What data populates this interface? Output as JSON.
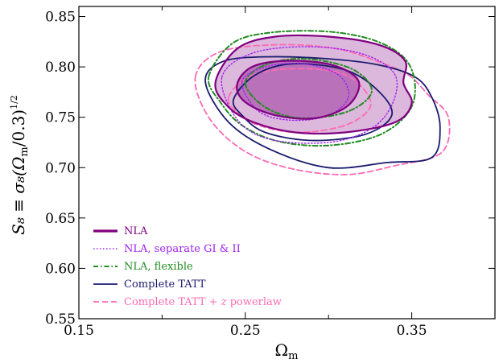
{
  "chart_data": {
    "type": "contour",
    "xlabel": "Ω",
    "xlabel_sub": "m",
    "ylabel": "S₈ ≡ σ₈(Ω",
    "ylabel_sub": "m",
    "ylabel_tail": "/0.3)",
    "ylabel_exp": "1/2",
    "xlim": [
      0.15,
      0.4
    ],
    "ylim": [
      0.55,
      0.86
    ],
    "xticks": [
      0.15,
      0.25,
      0.35
    ],
    "xtick_labels": [
      "0.15",
      "0.25",
      "0.35"
    ],
    "yticks": [
      0.55,
      0.6,
      0.65,
      0.7,
      0.75,
      0.8,
      0.85
    ],
    "ytick_labels": [
      "0.55",
      "0.60",
      "0.65",
      "0.70",
      "0.75",
      "0.80",
      "0.85"
    ],
    "legend_position": "lower-left",
    "series": [
      {
        "name": "NLA",
        "color": "#800080",
        "style": "solid-thick",
        "fill": true,
        "contours": [
          [
            [
              0.232,
              0.784
            ],
            [
              0.245,
              0.818
            ],
            [
              0.268,
              0.83
            ],
            [
              0.3,
              0.83
            ],
            [
              0.33,
              0.822
            ],
            [
              0.346,
              0.806
            ],
            [
              0.345,
              0.784
            ],
            [
              0.35,
              0.764
            ],
            [
              0.34,
              0.745
            ],
            [
              0.31,
              0.735
            ],
            [
              0.28,
              0.735
            ],
            [
              0.255,
              0.745
            ],
            [
              0.24,
              0.76
            ]
          ],
          [
            [
              0.245,
              0.782
            ],
            [
              0.254,
              0.8
            ],
            [
              0.275,
              0.806
            ],
            [
              0.302,
              0.802
            ],
            [
              0.318,
              0.786
            ],
            [
              0.312,
              0.762
            ],
            [
              0.292,
              0.749
            ],
            [
              0.268,
              0.752
            ],
            [
              0.25,
              0.765
            ]
          ]
        ]
      },
      {
        "name": "NLA, separate GI & II",
        "color": "#a020f0",
        "style": "dotted",
        "fill": false,
        "contours": [
          [
            [
              0.236,
              0.79
            ],
            [
              0.255,
              0.814
            ],
            [
              0.29,
              0.82
            ],
            [
              0.322,
              0.812
            ],
            [
              0.34,
              0.792
            ],
            [
              0.338,
              0.762
            ],
            [
              0.325,
              0.738
            ],
            [
              0.3,
              0.725
            ],
            [
              0.265,
              0.728
            ],
            [
              0.245,
              0.748
            ]
          ],
          [
            [
              0.248,
              0.785
            ],
            [
              0.262,
              0.8
            ],
            [
              0.285,
              0.803
            ],
            [
              0.306,
              0.792
            ],
            [
              0.312,
              0.77
            ],
            [
              0.3,
              0.752
            ],
            [
              0.278,
              0.747
            ],
            [
              0.258,
              0.756
            ]
          ]
        ]
      },
      {
        "name": "NLA, flexible",
        "color": "#228b22",
        "style": "dash-dot",
        "fill": false,
        "contours": [
          [
            [
              0.228,
              0.79
            ],
            [
              0.242,
              0.823
            ],
            [
              0.265,
              0.834
            ],
            [
              0.3,
              0.835
            ],
            [
              0.328,
              0.826
            ],
            [
              0.346,
              0.808
            ],
            [
              0.352,
              0.782
            ],
            [
              0.348,
              0.755
            ],
            [
              0.33,
              0.732
            ],
            [
              0.3,
              0.722
            ],
            [
              0.27,
              0.726
            ],
            [
              0.248,
              0.742
            ],
            [
              0.235,
              0.765
            ]
          ],
          [
            [
              0.25,
              0.784
            ],
            [
              0.262,
              0.802
            ],
            [
              0.286,
              0.808
            ],
            [
              0.314,
              0.798
            ],
            [
              0.326,
              0.776
            ],
            [
              0.312,
              0.756
            ],
            [
              0.284,
              0.749
            ],
            [
              0.262,
              0.76
            ]
          ]
        ]
      },
      {
        "name": "Complete TATT",
        "color": "#1a1a6e",
        "style": "solid",
        "fill": false,
        "contours": [
          [
            [
              0.226,
              0.785
            ],
            [
              0.236,
              0.805
            ],
            [
              0.262,
              0.81
            ],
            [
              0.3,
              0.808
            ],
            [
              0.33,
              0.802
            ],
            [
              0.352,
              0.79
            ],
            [
              0.362,
              0.77
            ],
            [
              0.367,
              0.74
            ],
            [
              0.362,
              0.71
            ],
            [
              0.335,
              0.705
            ],
            [
              0.3,
              0.7
            ],
            [
              0.265,
              0.718
            ],
            [
              0.24,
              0.745
            ]
          ],
          [
            [
              0.243,
              0.768
            ],
            [
              0.256,
              0.792
            ],
            [
              0.278,
              0.803
            ],
            [
              0.31,
              0.797
            ],
            [
              0.33,
              0.776
            ],
            [
              0.338,
              0.752
            ],
            [
              0.322,
              0.733
            ],
            [
              0.29,
              0.727
            ],
            [
              0.262,
              0.735
            ],
            [
              0.248,
              0.752
            ]
          ]
        ]
      },
      {
        "name": "Complete TATT + z powerlaw",
        "color": "#ff69b4",
        "style": "dashed",
        "fill": false,
        "contours": [
          [
            [
              0.22,
              0.79
            ],
            [
              0.235,
              0.815
            ],
            [
              0.27,
              0.822
            ],
            [
              0.305,
              0.818
            ],
            [
              0.33,
              0.805
            ],
            [
              0.348,
              0.792
            ],
            [
              0.36,
              0.772
            ],
            [
              0.372,
              0.75
            ],
            [
              0.368,
              0.715
            ],
            [
              0.34,
              0.702
            ],
            [
              0.31,
              0.693
            ],
            [
              0.275,
              0.7
            ],
            [
              0.248,
              0.718
            ],
            [
              0.228,
              0.75
            ]
          ],
          [
            [
              0.24,
              0.77
            ],
            [
              0.252,
              0.79
            ],
            [
              0.275,
              0.798
            ],
            [
              0.305,
              0.795
            ],
            [
              0.32,
              0.78
            ],
            [
              0.325,
              0.76
            ],
            [
              0.31,
              0.742
            ],
            [
              0.282,
              0.735
            ],
            [
              0.258,
              0.742
            ],
            [
              0.245,
              0.755
            ]
          ]
        ]
      }
    ]
  }
}
